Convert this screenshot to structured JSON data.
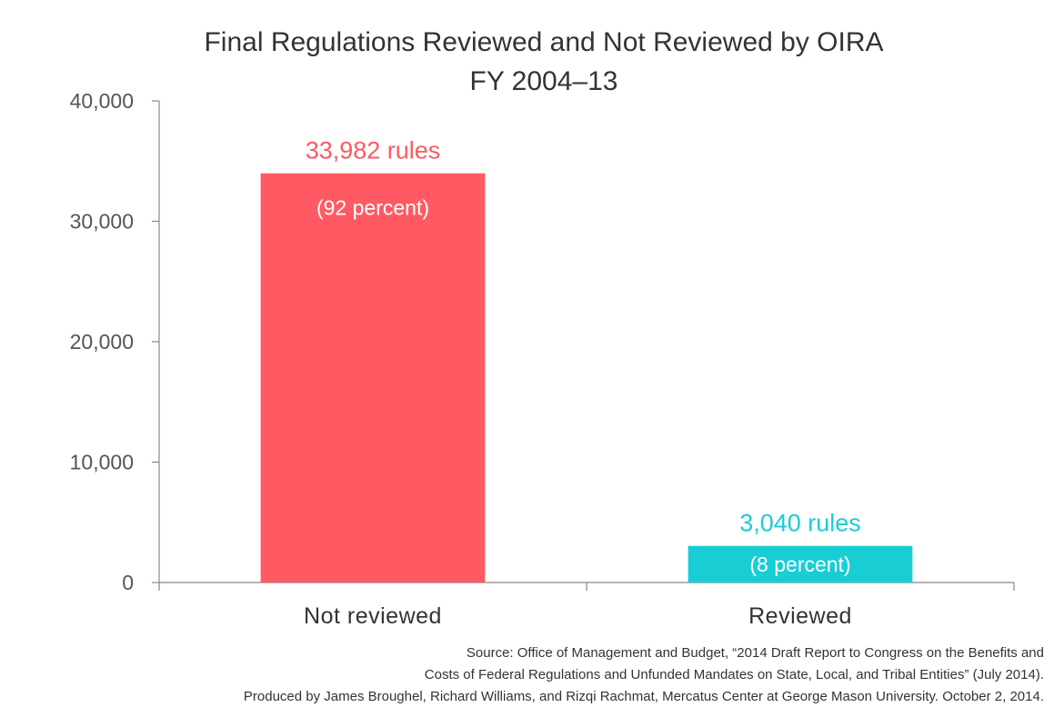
{
  "chart_data": {
    "type": "bar",
    "title": [
      "Final Regulations Reviewed and Not Reviewed by OIRA",
      "FY 2004–13"
    ],
    "categories": [
      "Not reviewed",
      "Reviewed"
    ],
    "values": [
      33982,
      3040
    ],
    "value_labels": [
      "33,982 rules",
      "3,040 rules"
    ],
    "percent_labels": [
      "(92 percent)",
      "(8 percent)"
    ],
    "colors": [
      "#ff5a63",
      "#19cdd5"
    ],
    "ylim": [
      0,
      40000
    ],
    "yticks": [
      0,
      10000,
      20000,
      30000,
      40000
    ],
    "ytick_labels": [
      "0",
      "10,000",
      "20,000",
      "30,000",
      "40,000"
    ],
    "grid": false,
    "xlabel": "",
    "ylabel": ""
  },
  "source": {
    "lines": [
      "Source: Office of Management and Budget, “2014 Draft Report to Congress on the Benefits and",
      "Costs of Federal Regulations and Unfunded Mandates on State, Local, and Tribal Entities” (July 2014).",
      "Produced by James Broughel, Richard Williams, and Rizqi Rachmat, Mercatus Center at George Mason University. October 2, 2014."
    ]
  }
}
